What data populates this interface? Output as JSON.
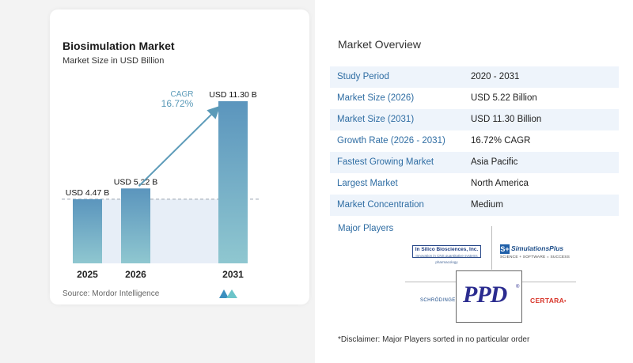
{
  "chart_data": {
    "type": "bar",
    "title": "Biosimulation Market",
    "subtitle": "Market Size in USD Billion",
    "categories": [
      "2025",
      "2026",
      "2031"
    ],
    "values": [
      4.47,
      5.22,
      11.3
    ],
    "data_labels": [
      "USD 4.47 B",
      "USD 5.22 B",
      "USD 11.30 B"
    ],
    "ylim": [
      0,
      12.4
    ],
    "grid": false,
    "annotation": {
      "label": "CAGR",
      "value": "16.72%"
    },
    "colors": {
      "bar_start": "#5b95bd",
      "bar_end": "#8fc7d0",
      "label": "#5b9ab8",
      "band": "#e7eef7"
    }
  },
  "source": "Source: Mordor Intelligence",
  "overview": {
    "title": "Market Overview",
    "rows": [
      {
        "label": "Study Period",
        "value": "2020 - 2031"
      },
      {
        "label": "Market Size (2026)",
        "value": "USD 5.22 Billion"
      },
      {
        "label": "Market Size (2031)",
        "value": "USD 11.30 Billion"
      },
      {
        "label": "Growth Rate (2026 - 2031)",
        "value": "16.72% CAGR"
      },
      {
        "label": "Fastest Growing Market",
        "value": "Asia Pacific"
      },
      {
        "label": "Largest Market",
        "value": "North America"
      },
      {
        "label": "Market Concentration",
        "value": "Medium"
      }
    ]
  },
  "players": {
    "title": "Major Players",
    "insilico_name": "In Silico Biosciences, Inc.",
    "insilico_tag": "Innovation in CNS quantitative systems pharmacology",
    "simplus_mark": "S+",
    "simplus_name": "SimulationsPlus",
    "simplus_tag": "SCIENCE + SOFTWARE = SUCCESS",
    "schrodinger": "SCHRÖDINGER",
    "ppd": "PPD",
    "ppd_reg": "®",
    "certara": "CERTARA",
    "certara_mark": "•"
  },
  "disclaimer": "*Disclaimer: Major Players sorted in no particular order"
}
